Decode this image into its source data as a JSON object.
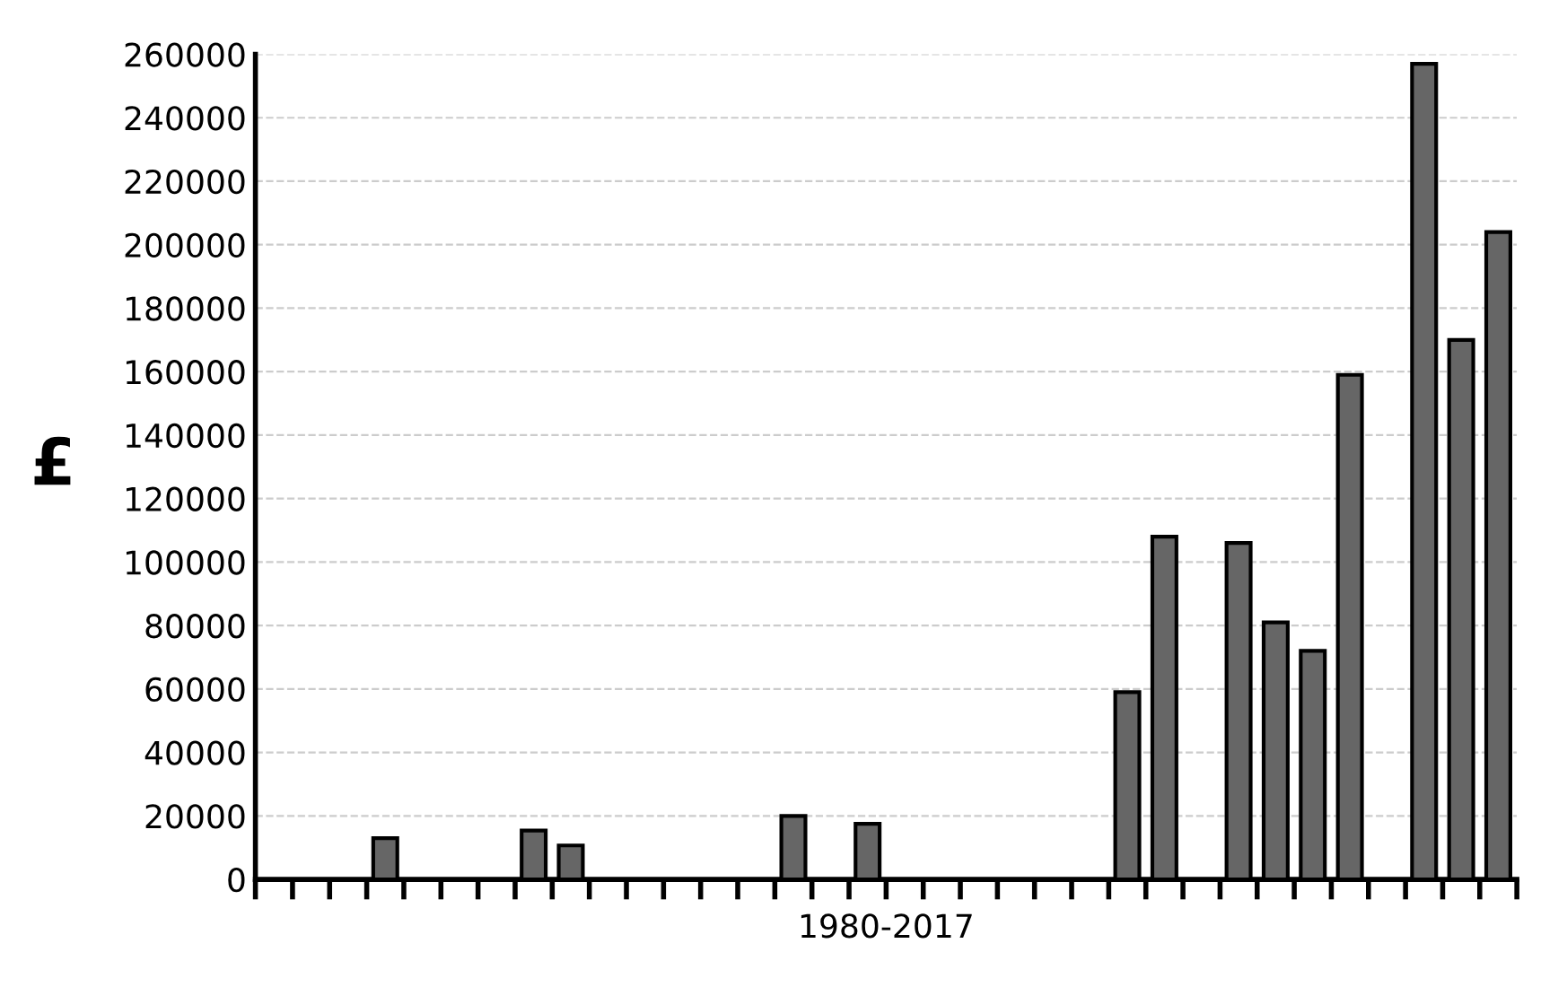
{
  "chart_data": {
    "type": "bar",
    "xlabel": "1980-2017",
    "ylabel": "£",
    "categories": [
      null,
      null,
      null,
      null,
      null,
      null,
      null,
      null,
      null,
      null,
      null,
      null,
      null,
      null,
      null,
      null,
      null,
      null,
      null,
      null,
      null,
      null,
      null,
      null,
      null,
      null,
      null,
      null,
      null,
      null,
      null,
      null,
      null,
      null
    ],
    "values": [
      0,
      0,
      0,
      13000,
      0,
      0,
      0,
      15400,
      10700,
      0,
      0,
      0,
      0,
      0,
      20000,
      0,
      17500,
      0,
      0,
      0,
      0,
      0,
      0,
      59000,
      108000,
      0,
      106000,
      81000,
      72000,
      159000,
      0,
      257000,
      170000,
      204000
    ],
    "color": "#666666",
    "ylim": [
      0,
      260000
    ],
    "yticks": [
      0,
      20000,
      40000,
      60000,
      80000,
      100000,
      120000,
      140000,
      160000,
      180000,
      200000,
      220000,
      240000,
      260000
    ],
    "grid": "y"
  }
}
